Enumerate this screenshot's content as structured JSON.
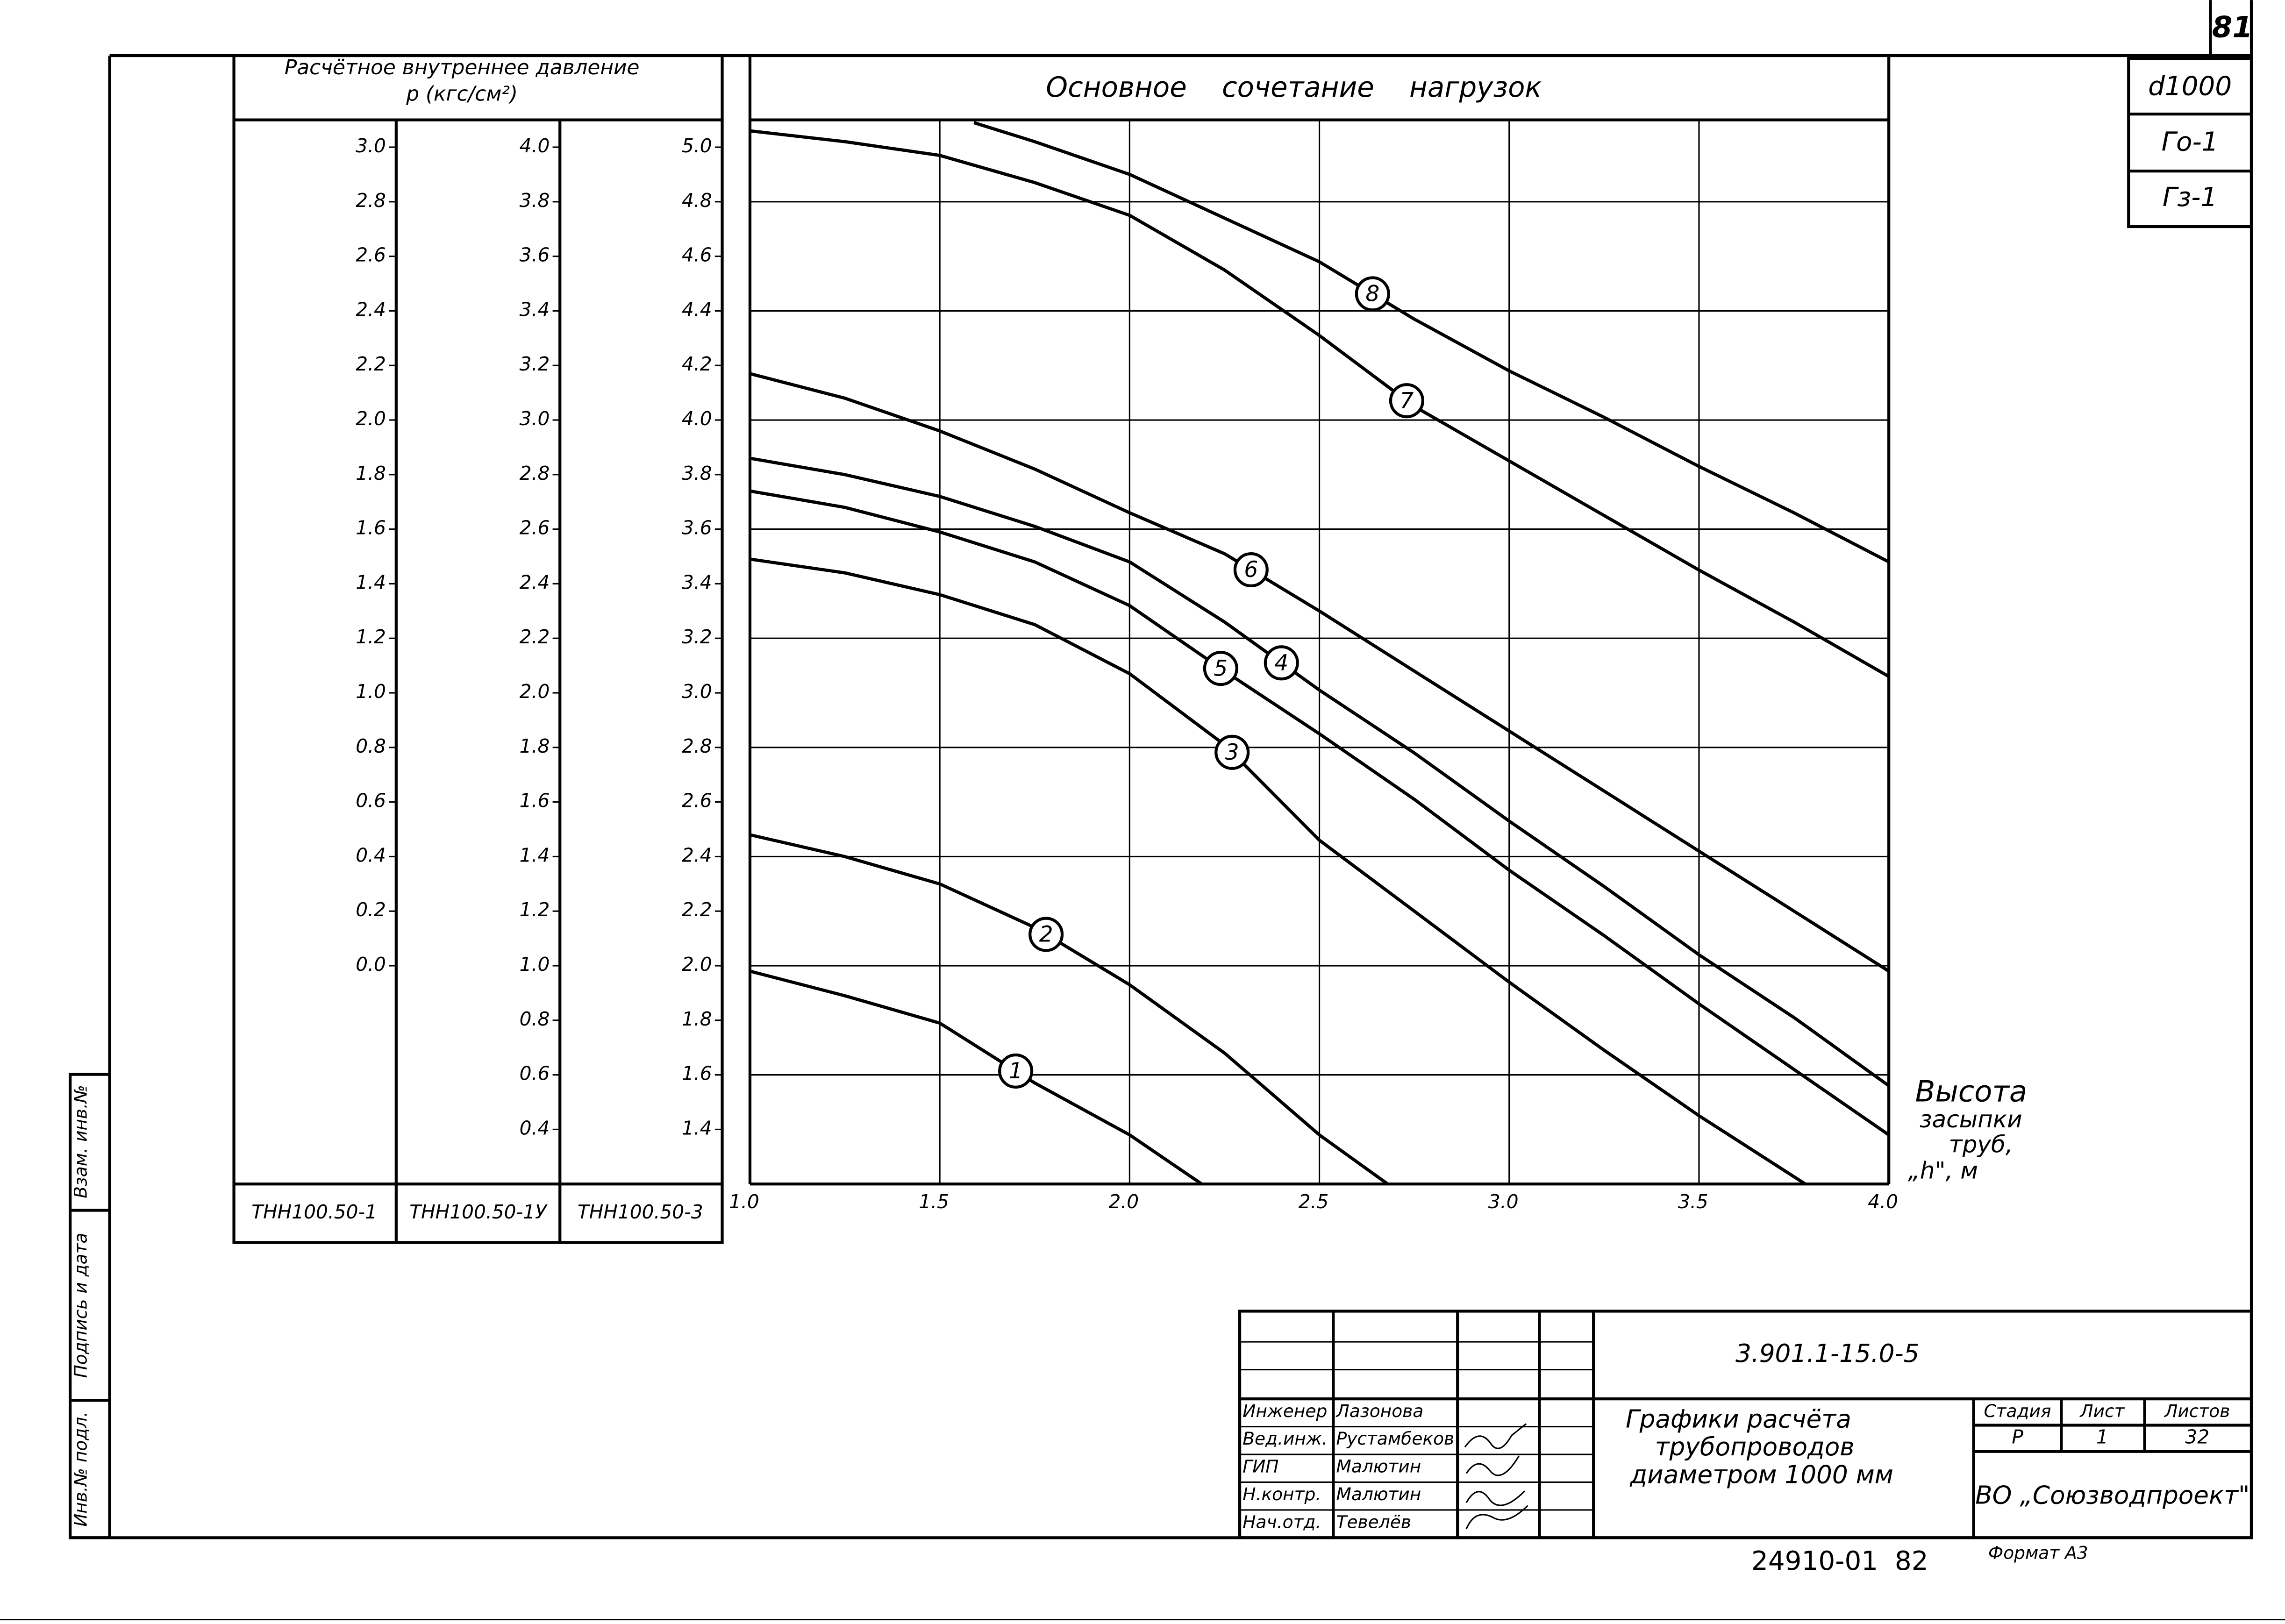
{
  "sheet_number": "81",
  "marks": [
    "d1000",
    "Го-1",
    "Гз-1"
  ],
  "stamps": [
    "Инв.№ подл.",
    "Подпись и дата",
    "Взам. инв.№"
  ],
  "chart_data": {
    "type": "line",
    "title": "Основное сочетание нагрузок",
    "y_header": [
      "Расчётное внутреннее давление",
      "p (кгс/см²)"
    ],
    "x_label": [
      "Высота",
      "засыпки",
      "труб,",
      "„h\", м"
    ],
    "xlim": [
      1.0,
      4.0
    ],
    "xticks": [
      {
        "value": 1,
        "label": "1.0"
      },
      1.5,
      {
        "value": 2,
        "label": "2.0"
      },
      2.5,
      {
        "value": 3,
        "label": "3.0"
      },
      3.5,
      {
        "value": 4,
        "label": "4.0"
      }
    ],
    "ylim": [
      1.2,
      5.1
    ],
    "y_name": "ТНН100.50-3",
    "yticks": [
      {
        "value": 5,
        "label": "5.0"
      },
      4.8,
      4.6,
      4.4,
      4.2,
      {
        "value": 4,
        "label": "4.0"
      },
      3.8,
      3.6,
      3.4,
      3.2,
      {
        "value": 3,
        "label": "3.0"
      },
      2.8,
      2.6,
      2.4,
      2.2,
      {
        "value": 2,
        "label": "2.0"
      },
      1.8,
      1.6,
      1.4
    ],
    "y_scales": [
      {
        "name": "ТНН100.50-1",
        "ylim": [
          -0.8,
          3.1
        ],
        "yticks": [
          {
            "value": 3,
            "label": "3.0"
          },
          2.8,
          2.6,
          2.4,
          2.2,
          {
            "value": 2,
            "label": "2.0"
          },
          1.8,
          1.6,
          1.4,
          1.2,
          {
            "value": 1,
            "label": "1.0"
          },
          0.8,
          0.6,
          0.4,
          0.2,
          {
            "value": 0,
            "label": "0.0"
          }
        ]
      },
      {
        "name": "ТНН100.50-1У",
        "ylim": [
          0.2,
          4.1
        ],
        "yticks": [
          {
            "value": 4,
            "label": "4.0"
          },
          3.8,
          3.6,
          3.4,
          3.2,
          {
            "value": 3,
            "label": "3.0"
          },
          2.8,
          2.6,
          2.4,
          2.2,
          {
            "value": 2,
            "label": "2.0"
          },
          1.8,
          1.6,
          1.4,
          1.2,
          {
            "value": 1,
            "label": "1.0"
          },
          0.8,
          0.6,
          0.4
        ]
      }
    ],
    "ygrid": [
      1.6,
      2.0,
      2.4,
      2.8,
      3.2,
      3.6,
      4.0,
      4.4,
      4.8
    ],
    "grid": true,
    "series": [
      {
        "name": "1",
        "color": "#000",
        "x": [
          1,
          1.25,
          1.5,
          1.75,
          2,
          2.19
        ],
        "values": [
          1.98,
          1.89,
          1.79,
          1.57,
          1.38,
          1.2
        ]
      },
      {
        "name": "2",
        "color": "#000",
        "x": [
          1,
          1.25,
          1.5,
          1.75,
          2,
          2.25,
          2.5,
          2.68
        ],
        "values": [
          2.48,
          2.4,
          2.3,
          2.14,
          1.93,
          1.68,
          1.38,
          1.2
        ]
      },
      {
        "name": "3",
        "color": "#000",
        "x": [
          1,
          1.25,
          1.5,
          1.75,
          2,
          2.25,
          2.5,
          2.75,
          3,
          3.25,
          3.5,
          3.78
        ],
        "values": [
          3.49,
          3.44,
          3.36,
          3.25,
          3.07,
          2.81,
          2.46,
          2.2,
          1.94,
          1.69,
          1.45,
          1.2
        ]
      },
      {
        "name": "4",
        "color": "#000",
        "x": [
          1,
          1.25,
          1.5,
          1.75,
          2,
          2.25,
          2.5,
          2.75,
          3,
          3.25,
          3.5,
          3.75,
          4
        ],
        "values": [
          3.86,
          3.8,
          3.72,
          3.61,
          3.48,
          3.26,
          3.01,
          2.78,
          2.53,
          2.29,
          2.04,
          1.81,
          1.56
        ]
      },
      {
        "name": "5",
        "color": "#000",
        "x": [
          1,
          1.25,
          1.5,
          1.75,
          2,
          2.25,
          2.5,
          2.75,
          3,
          3.25,
          3.5,
          3.75,
          4
        ],
        "values": [
          3.74,
          3.68,
          3.59,
          3.48,
          3.32,
          3.08,
          2.85,
          2.61,
          2.35,
          2.11,
          1.86,
          1.62,
          1.38
        ]
      },
      {
        "name": "6",
        "color": "#000",
        "x": [
          1,
          1.25,
          1.5,
          1.75,
          2,
          2.25,
          2.5,
          2.75,
          3,
          3.25,
          3.5,
          3.75,
          4
        ],
        "values": [
          4.17,
          4.08,
          3.96,
          3.82,
          3.66,
          3.51,
          3.3,
          3.08,
          2.86,
          2.64,
          2.42,
          2.2,
          1.98
        ]
      },
      {
        "name": "7",
        "color": "#000",
        "x": [
          1,
          1.25,
          1.5,
          1.75,
          2,
          2.25,
          2.5,
          2.75,
          3,
          3.25,
          3.5,
          3.75,
          4
        ],
        "values": [
          5.06,
          5.02,
          4.97,
          4.87,
          4.75,
          4.55,
          4.31,
          4.05,
          3.85,
          3.65,
          3.45,
          3.26,
          3.06
        ]
      },
      {
        "name": "8",
        "color": "#000",
        "x": [
          1.59,
          1.75,
          2,
          2.25,
          2.5,
          2.75,
          3,
          3.25,
          3.5,
          3.75,
          4
        ],
        "values": [
          5.09,
          5.02,
          4.9,
          4.74,
          4.58,
          4.37,
          4.18,
          4.01,
          3.83,
          3.66,
          3.48
        ]
      }
    ]
  },
  "title_block": {
    "code": "3.901.1-15.0-5",
    "title": [
      "Графики расчёта",
      "трубопроводов",
      "диаметром 1000 мм"
    ],
    "staff": [
      [
        "Инженер",
        "Лазонова"
      ],
      [
        "Вед.инж.",
        "Рустамбеков"
      ],
      [
        "ГИП",
        "Малютин"
      ],
      [
        "Н.контр.",
        "Малютин"
      ],
      [
        "Нач.отд.",
        "Тевелёв"
      ]
    ],
    "stage_headers": [
      "Стадия",
      "Лист",
      "Листов"
    ],
    "stage_values": [
      "Р",
      "1",
      "32"
    ],
    "organization": "ВО „Союзводпроект\"",
    "archive": "24910-01  82",
    "format": "Формат А3"
  }
}
